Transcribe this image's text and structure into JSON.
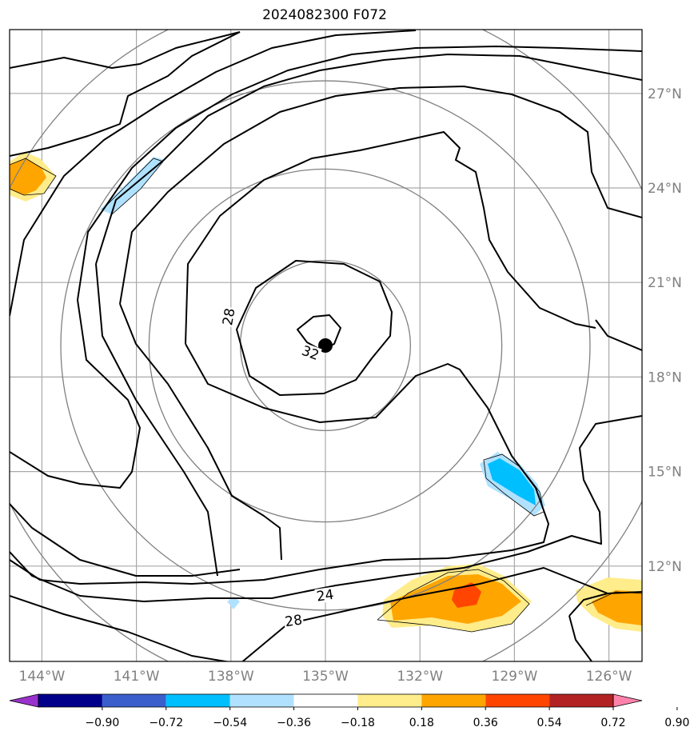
{
  "title": "2024082300 F072",
  "chart_data": {
    "type": "map-contour",
    "title": "2024082300 F072",
    "lon_ticks": [
      "144°W",
      "141°W",
      "138°W",
      "135°W",
      "132°W",
      "129°W",
      "126°W"
    ],
    "lat_ticks": [
      "27°N",
      "24°N",
      "21°N",
      "18°N",
      "15°N",
      "12°N"
    ],
    "center_marker": {
      "lon": -135.0,
      "lat": 19.0
    },
    "range_rings_deg": [
      2.7,
      5.6,
      8.4,
      11.2
    ],
    "contour_labels": [
      {
        "text": "28",
        "lon": -138.0,
        "lat": 19.9
      },
      {
        "text": "32",
        "lon": -135.5,
        "lat": 18.7
      },
      {
        "text": "24",
        "lon": -135.0,
        "lat": 11.0
      },
      {
        "text": "28",
        "lon": -136.0,
        "lat": 10.2
      }
    ],
    "colorbar": {
      "ticks": [
        "−0.90",
        "−0.72",
        "−0.54",
        "−0.36",
        "−0.18",
        "0.18",
        "0.36",
        "0.54",
        "0.72",
        "0.90"
      ],
      "colors": [
        "#9932cc",
        "#00008b",
        "#3a5fcd",
        "#00bfff",
        "#b0e2ff",
        "#ffffff",
        "#ffec8b",
        "#ffa500",
        "#ff4500",
        "#b22222",
        "#ff82ab"
      ]
    },
    "grid": true
  }
}
